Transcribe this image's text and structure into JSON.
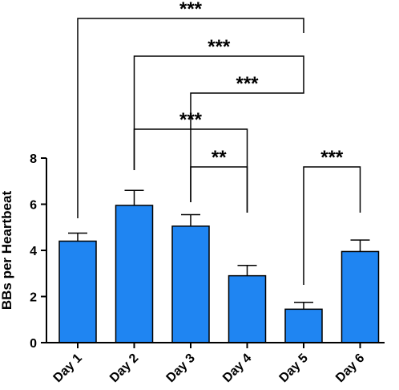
{
  "chart_data": {
    "type": "bar",
    "categories": [
      "Day 1",
      "Day 2",
      "Day 3",
      "Day 4",
      "Day 5",
      "Day 6"
    ],
    "values": [
      4.4,
      5.95,
      5.05,
      2.9,
      1.45,
      3.95
    ],
    "errors": [
      0.35,
      0.65,
      0.5,
      0.45,
      0.3,
      0.5
    ],
    "ylabel": "BBs per Heartbeat",
    "xlabel": "",
    "title": "",
    "ylim": [
      0,
      8
    ],
    "yticks": [
      0,
      2,
      4,
      6,
      8
    ],
    "bar_color": "#1f85f2",
    "significance": [
      {
        "from": "Day 1",
        "to": "Day 5",
        "label": "***"
      },
      {
        "from": "Day 2",
        "to": "Day 5",
        "label": "***"
      },
      {
        "from": "Day 3",
        "to": "Day 5",
        "label": "***"
      },
      {
        "from": "Day 2",
        "to": "Day 4",
        "label": "***"
      },
      {
        "from": "Day 3",
        "to": "Day 4",
        "label": "**"
      },
      {
        "from": "Day 5",
        "to": "Day 6",
        "label": "***"
      }
    ]
  }
}
